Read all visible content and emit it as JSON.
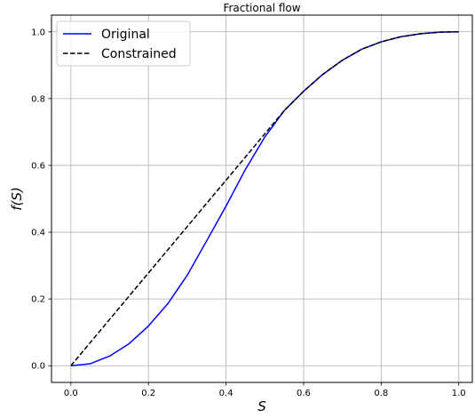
{
  "chart_data": {
    "type": "line",
    "title": "Fractional flow",
    "xlabel": "S",
    "ylabel": "f(S)",
    "xlim": [
      -0.05,
      1.035
    ],
    "ylim": [
      -0.05,
      1.05
    ],
    "xticks": [
      0.0,
      0.2,
      0.4,
      0.6,
      0.8,
      1.0
    ],
    "yticks": [
      0.0,
      0.2,
      0.4,
      0.6,
      0.8,
      1.0
    ],
    "xtick_labels": [
      "0.0",
      "0.2",
      "0.4",
      "0.6",
      "0.8",
      "1.0"
    ],
    "ytick_labels": [
      "0.0",
      "0.2",
      "0.4",
      "0.6",
      "0.8",
      "1.0"
    ],
    "grid": true,
    "legend_position": "top-left",
    "series": [
      {
        "name": "Original",
        "color": "#0000ff",
        "style": "solid",
        "x": [
          0.0,
          0.05,
          0.1,
          0.15,
          0.2,
          0.25,
          0.3,
          0.35,
          0.4,
          0.45,
          0.5,
          0.55,
          0.6,
          0.65,
          0.7,
          0.75,
          0.8,
          0.85,
          0.9,
          0.95,
          1.0
        ],
        "y": [
          0.0,
          0.006,
          0.029,
          0.066,
          0.119,
          0.186,
          0.271,
          0.374,
          0.478,
          0.588,
          0.685,
          0.764,
          0.822,
          0.873,
          0.915,
          0.948,
          0.97,
          0.985,
          0.994,
          0.999,
          1.0
        ]
      },
      {
        "name": "Constrained",
        "color": "#000000",
        "style": "dashed",
        "x": [
          0.0,
          0.55,
          0.6,
          0.65,
          0.7,
          0.75,
          0.8,
          0.85,
          0.9,
          0.95,
          1.0
        ],
        "y": [
          0.0,
          0.764,
          0.822,
          0.873,
          0.915,
          0.948,
          0.97,
          0.985,
          0.994,
          0.999,
          1.0
        ]
      }
    ]
  }
}
